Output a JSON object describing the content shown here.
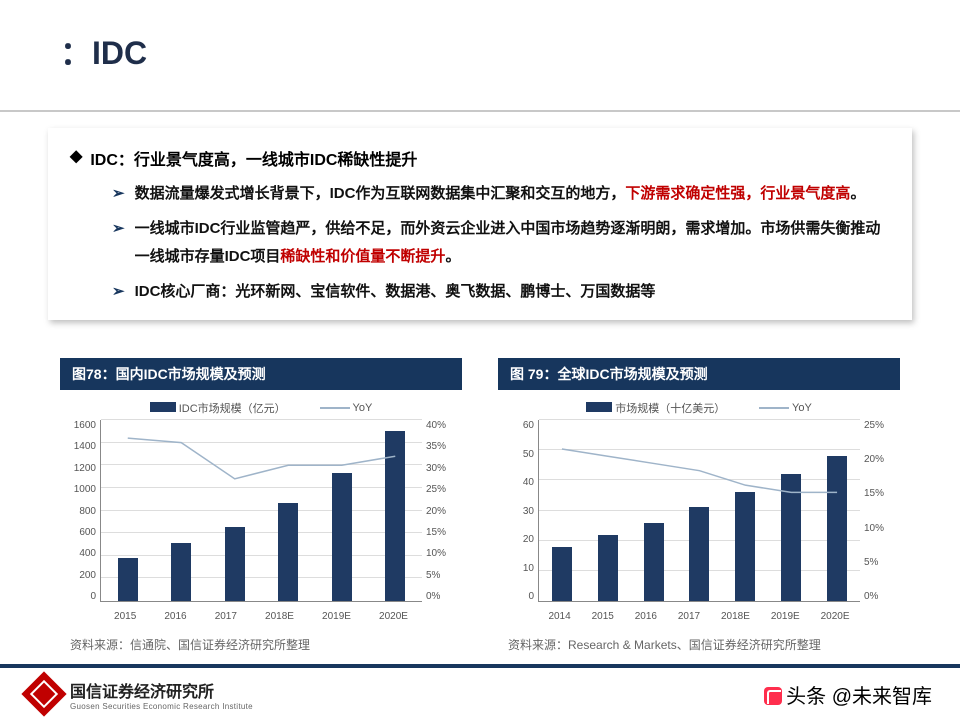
{
  "title": "：IDC",
  "heading": {
    "marker": "◆",
    "text": "IDC：行业景气度高，一线城市IDC稀缺性提升"
  },
  "bullets": [
    {
      "pre": "数据流量爆发式增长背景下，IDC作为互联网数据集中汇聚和交互的地方，",
      "hl": "下游需求确定性强，行业景气度高",
      "post": "。"
    },
    {
      "pre": "一线城市IDC行业监管趋严，供给不足，而外资云企业进入中国市场趋势逐渐明朗，需求增加。市场供需失衡推动一线城市存量IDC项目",
      "hl": "稀缺性和价值量不断提升",
      "post": "。"
    },
    {
      "pre": "IDC核心厂商：光环新网、宝信软件、数据港、奥飞数据、鹏博士、万国数据等",
      "hl": "",
      "post": ""
    }
  ],
  "bullet_marker": "➢",
  "colors": {
    "brand_dark": "#17365d",
    "bar": "#1f3a63",
    "line": "#9fb4c9",
    "highlight": "#c00000",
    "grid": "#dddddd"
  },
  "charts": [
    {
      "title": "图78：国内IDC市场规模及预测",
      "legend_bar": "IDC市场规模（亿元）",
      "legend_line": "YoY",
      "categories": [
        "2015",
        "2016",
        "2017",
        "2018E",
        "2019E",
        "2020E"
      ],
      "bars": [
        380,
        510,
        650,
        870,
        1130,
        1500
      ],
      "y_left": {
        "max": 1600,
        "step": 200
      },
      "line_pct": [
        36,
        35,
        27,
        30,
        30,
        32
      ],
      "y_right": {
        "max": 40,
        "step": 5
      },
      "source": "资料来源：信通院、国信证券经济研究所整理"
    },
    {
      "title": "图 79：全球IDC市场规模及预测",
      "legend_bar": "市场规模（十亿美元）",
      "legend_line": "YoY",
      "categories": [
        "2014",
        "2015",
        "2016",
        "2017",
        "2018E",
        "2019E",
        "2020E"
      ],
      "bars": [
        18,
        22,
        26,
        31,
        36,
        42,
        48
      ],
      "y_left": {
        "max": 60,
        "step": 10
      },
      "line_pct": [
        21,
        20,
        19,
        18,
        16,
        15,
        15
      ],
      "y_right": {
        "max": 25,
        "step": 5
      },
      "source": "资料来源：Research & Markets、国信证券经济研究所整理"
    }
  ],
  "footer": {
    "cn": "国信证券经济研究所",
    "en": "Guosen Securities Economic Research Institute",
    "brand": "GUOSEN"
  },
  "watermark": "头条 @未来智库"
}
